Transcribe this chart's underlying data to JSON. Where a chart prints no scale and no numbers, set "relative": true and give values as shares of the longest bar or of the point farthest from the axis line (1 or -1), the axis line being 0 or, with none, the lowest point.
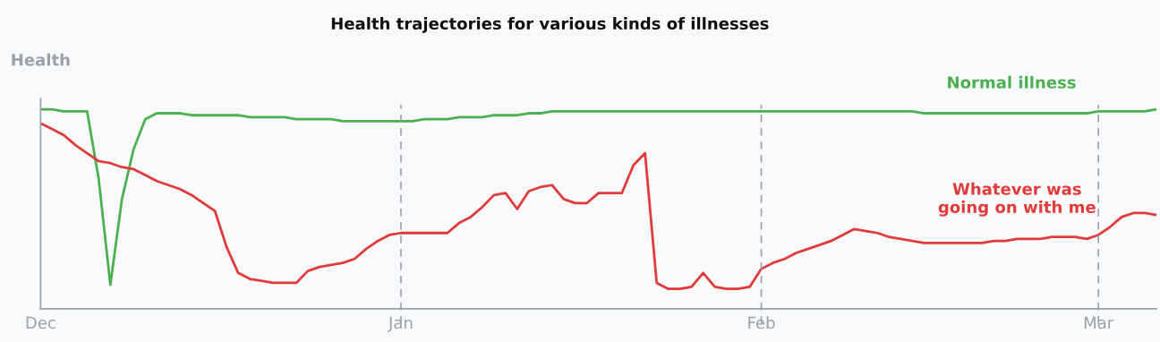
{
  "chart_data": {
    "type": "line",
    "title": "Health trajectories for various kinds of illnesses",
    "ylabel": "Health",
    "relative": true,
    "tick_labels": "x",
    "categories": [
      "Dec",
      null,
      null,
      null,
      null,
      null,
      null,
      null,
      null,
      null,
      null,
      null,
      null,
      null,
      null,
      null,
      null,
      null,
      null,
      null,
      null,
      null,
      null,
      null,
      null,
      null,
      null,
      null,
      null,
      null,
      null,
      "Jan",
      null,
      null,
      null,
      null,
      null,
      null,
      null,
      null,
      null,
      null,
      null,
      null,
      null,
      null,
      null,
      null,
      null,
      null,
      null,
      null,
      null,
      null,
      null,
      null,
      null,
      null,
      null,
      null,
      null,
      null,
      "Feb",
      null,
      null,
      null,
      null,
      null,
      null,
      null,
      null,
      null,
      null,
      null,
      null,
      null,
      null,
      null,
      null,
      null,
      null,
      null,
      null,
      null,
      null,
      null,
      null,
      null,
      null,
      null,
      null,
      "Mar",
      null,
      null,
      null,
      null,
      null
    ],
    "ref_lines": [
      {
        "axis": "x",
        "value": "Jan",
        "color": "#9aa0aa",
        "line_style": "dashed"
      },
      {
        "axis": "x",
        "value": "Feb",
        "color": "#9aa0aa",
        "line_style": "dashed"
      },
      {
        "axis": "x",
        "value": "Mar",
        "color": "#9aa0aa",
        "line_style": "dashed"
      }
    ],
    "series": [
      {
        "name": "Normal illness",
        "color": "#4caf50",
        "values": [
          1.0,
          1.0,
          0.99,
          0.99,
          0.99,
          0.65,
          0.12,
          0.55,
          0.8,
          0.95,
          0.98,
          0.98,
          0.98,
          0.97,
          0.97,
          0.97,
          0.97,
          0.97,
          0.96,
          0.96,
          0.96,
          0.96,
          0.95,
          0.95,
          0.95,
          0.95,
          0.94,
          0.94,
          0.94,
          0.94,
          0.94,
          0.94,
          0.94,
          0.95,
          0.95,
          0.95,
          0.96,
          0.96,
          0.96,
          0.97,
          0.97,
          0.97,
          0.98,
          0.98,
          0.99,
          0.99,
          0.99,
          0.99,
          0.99,
          0.99,
          0.99,
          0.99,
          0.99,
          0.99,
          0.99,
          0.99,
          0.99,
          0.99,
          0.99,
          0.99,
          0.99,
          0.99,
          0.99,
          0.99,
          0.99,
          0.99,
          0.99,
          0.99,
          0.99,
          0.99,
          0.99,
          0.99,
          0.99,
          0.99,
          0.99,
          0.99,
          0.98,
          0.98,
          0.98,
          0.98,
          0.98,
          0.98,
          0.98,
          0.98,
          0.98,
          0.98,
          0.98,
          0.98,
          0.98,
          0.98,
          0.98,
          0.99,
          0.99,
          0.99,
          0.99,
          0.99,
          1.0
        ]
      },
      {
        "name": "Whatever was\ngoing on with me",
        "color": "#e03a3a",
        "values": [
          0.93,
          0.9,
          0.87,
          0.82,
          0.78,
          0.74,
          0.73,
          0.71,
          0.7,
          0.67,
          0.64,
          0.62,
          0.6,
          0.57,
          0.53,
          0.49,
          0.31,
          0.18,
          0.15,
          0.14,
          0.13,
          0.13,
          0.13,
          0.19,
          0.21,
          0.22,
          0.23,
          0.25,
          0.3,
          0.34,
          0.37,
          0.38,
          0.38,
          0.38,
          0.38,
          0.38,
          0.43,
          0.46,
          0.51,
          0.57,
          0.58,
          0.5,
          0.59,
          0.61,
          0.62,
          0.55,
          0.53,
          0.53,
          0.58,
          0.58,
          0.58,
          0.72,
          0.78,
          0.13,
          0.1,
          0.1,
          0.11,
          0.18,
          0.11,
          0.1,
          0.1,
          0.11,
          0.2,
          0.23,
          0.25,
          0.28,
          0.3,
          0.32,
          0.34,
          0.37,
          0.4,
          0.39,
          0.38,
          0.36,
          0.35,
          0.34,
          0.33,
          0.33,
          0.33,
          0.33,
          0.33,
          0.33,
          0.34,
          0.34,
          0.35,
          0.35,
          0.35,
          0.36,
          0.36,
          0.36,
          0.35,
          0.37,
          0.41,
          0.46,
          0.48,
          0.48,
          0.47
        ]
      }
    ]
  }
}
